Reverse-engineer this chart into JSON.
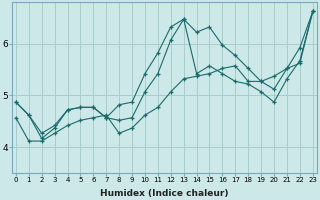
{
  "xlabel": "Humidex (Indice chaleur)",
  "ylabel": "",
  "bg_color": "#cce8e8",
  "grid_color": "#aacccc",
  "line_color": "#1a6b6b",
  "x_ticks": [
    0,
    1,
    2,
    3,
    4,
    5,
    6,
    7,
    8,
    9,
    10,
    11,
    12,
    13,
    14,
    15,
    16,
    17,
    18,
    19,
    20,
    21,
    22,
    23
  ],
  "y_ticks": [
    4,
    5,
    6
  ],
  "ylim": [
    3.5,
    6.8
  ],
  "xlim": [
    -0.3,
    23.3
  ],
  "line1_x": [
    0,
    1,
    2,
    3,
    4,
    5,
    6,
    7,
    8,
    9,
    10,
    11,
    12,
    13,
    14,
    15,
    16,
    17,
    18,
    19,
    20,
    21,
    22,
    23
  ],
  "line1_y": [
    4.87,
    4.62,
    4.17,
    4.37,
    4.72,
    4.77,
    4.77,
    4.57,
    4.82,
    4.87,
    5.42,
    5.82,
    6.32,
    6.47,
    6.22,
    6.32,
    5.97,
    5.77,
    5.52,
    5.27,
    5.12,
    5.52,
    5.92,
    6.62
  ],
  "line2_x": [
    0,
    1,
    2,
    3,
    4,
    5,
    6,
    7,
    8,
    9,
    10,
    11,
    12,
    13,
    14,
    15,
    16,
    17,
    18,
    19,
    20,
    21,
    22,
    23
  ],
  "line2_y": [
    4.87,
    4.62,
    4.27,
    4.42,
    4.72,
    4.77,
    4.77,
    4.57,
    4.52,
    4.57,
    5.07,
    5.42,
    6.07,
    6.47,
    5.42,
    5.57,
    5.42,
    5.27,
    5.22,
    5.07,
    4.87,
    5.32,
    5.67,
    6.62
  ],
  "line3_x": [
    0,
    1,
    2,
    3,
    4,
    5,
    6,
    7,
    8,
    9,
    10,
    11,
    12,
    13,
    14,
    15,
    16,
    17,
    18,
    19,
    20,
    21,
    22,
    23
  ],
  "line3_y": [
    4.57,
    4.12,
    4.12,
    4.27,
    4.42,
    4.52,
    4.57,
    4.62,
    4.27,
    4.37,
    4.62,
    4.77,
    5.07,
    5.32,
    5.37,
    5.42,
    5.52,
    5.57,
    5.27,
    5.27,
    5.37,
    5.52,
    5.62,
    6.62
  ]
}
